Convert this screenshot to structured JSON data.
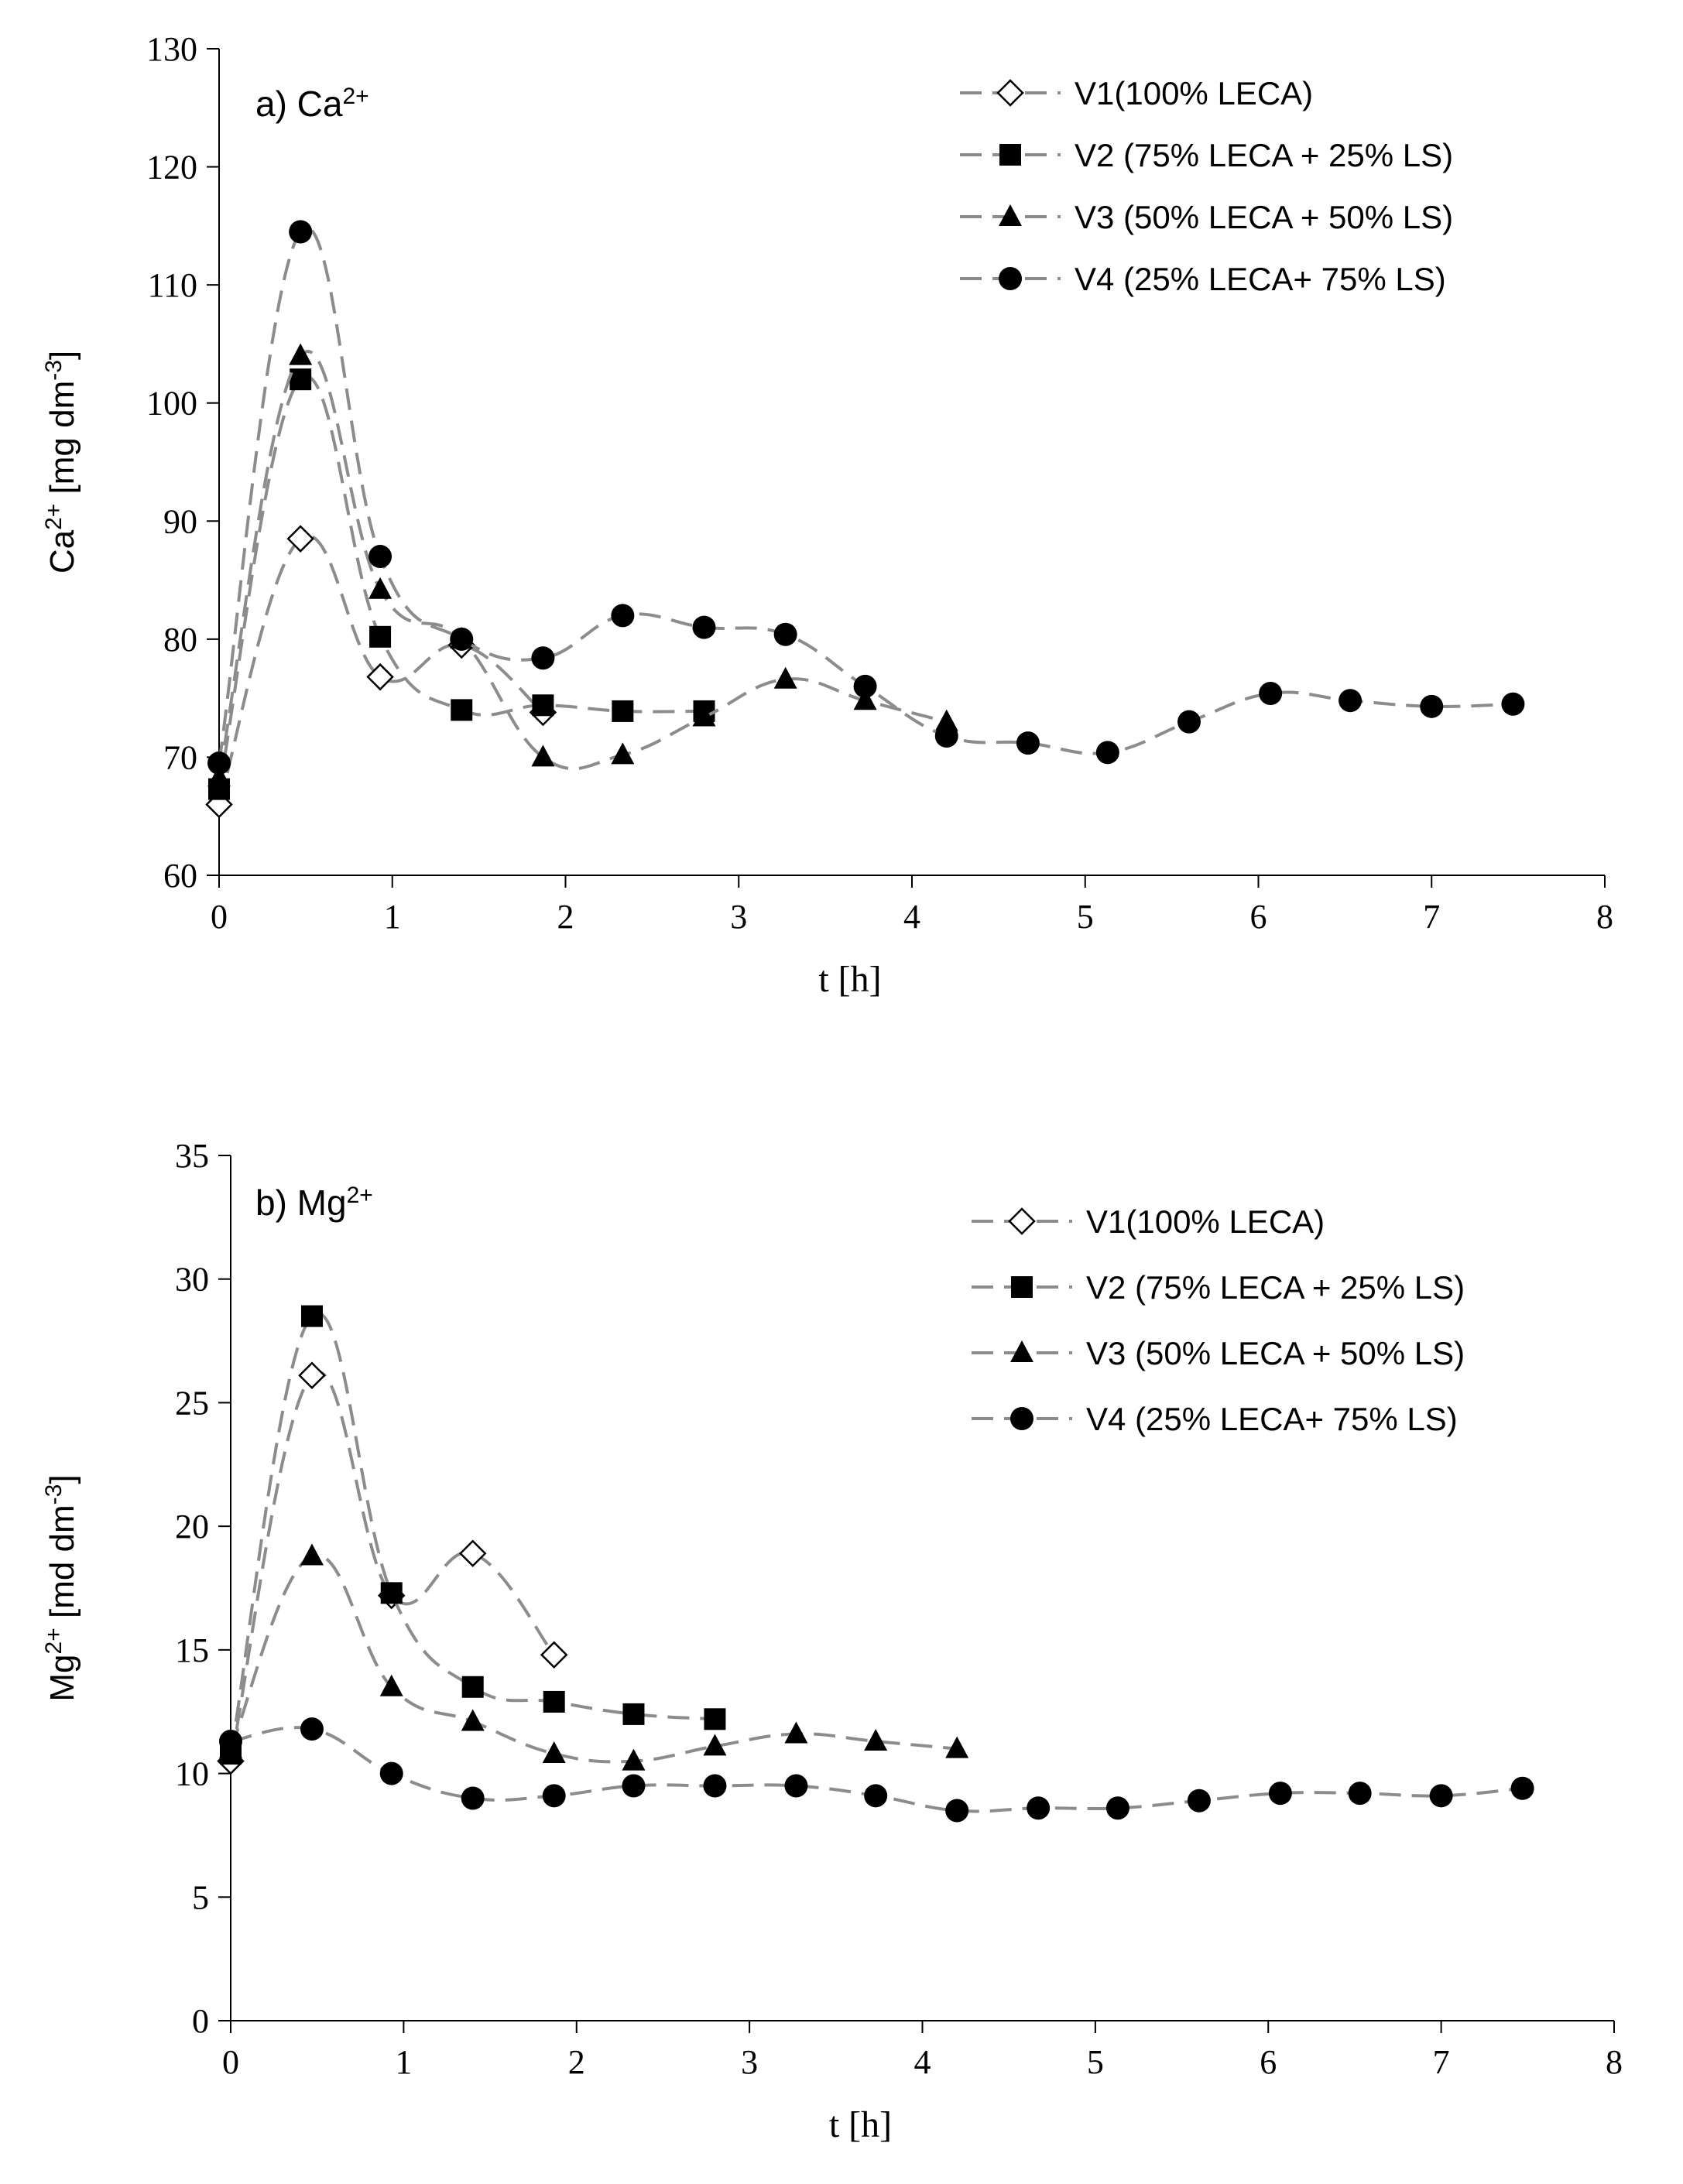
{
  "chart_data": [
    {
      "type": "line",
      "panel_label": "a) Ca",
      "panel_label_sup": "2+",
      "xlabel": "t [h]",
      "ylabel": {
        "main": "Ca",
        "sup": "2+",
        "rest": " [mg dm",
        "sup2": "-3",
        "end": "]"
      },
      "xlim": [
        0,
        8
      ],
      "ylim": [
        60,
        130
      ],
      "xticks": [
        "0",
        "1",
        "2",
        "3",
        "4",
        "5",
        "6",
        "7",
        "8"
      ],
      "yticks": [
        "60",
        "70",
        "80",
        "90",
        "100",
        "110",
        "120",
        "130"
      ],
      "line_style": "dashed, smoothed",
      "line_color": "#8c8c8c",
      "legend_position": "top-right",
      "series": [
        {
          "name": "V1(100% LECA)",
          "marker": "diamond-open",
          "x": [
            0,
            0.47,
            0.93,
            1.4,
            1.87
          ],
          "y": [
            66,
            88.5,
            76.8,
            79.5,
            73.8
          ]
        },
        {
          "name": "V2 (75% LECA + 25% LS)",
          "marker": "square",
          "x": [
            0,
            0.47,
            0.93,
            1.4,
            1.87,
            2.33,
            2.8
          ],
          "y": [
            67.3,
            102,
            80.2,
            74,
            74.4,
            73.9,
            73.9
          ]
        },
        {
          "name": "V3 (50% LECA + 50% LS)",
          "marker": "triangle",
          "x": [
            0,
            0.47,
            0.93,
            1.4,
            1.87,
            2.33,
            2.8,
            3.27,
            3.73,
            4.2
          ],
          "y": [
            68.3,
            104,
            84.2,
            80,
            70,
            70.2,
            73.4,
            76.6,
            74.8,
            73
          ]
        },
        {
          "name": "V4 (25% LECA+ 75% LS)",
          "marker": "circle",
          "x": [
            0,
            0.47,
            0.93,
            1.4,
            1.87,
            2.33,
            2.8,
            3.27,
            3.73,
            4.2,
            4.67,
            5.13,
            5.6,
            6.07,
            6.53,
            7,
            7.47
          ],
          "y": [
            69.5,
            114.5,
            87,
            80,
            78.4,
            82,
            81,
            80.4,
            76,
            71.8,
            71.2,
            70.4,
            73,
            75.4,
            74.8,
            74.3,
            74.5
          ]
        }
      ]
    },
    {
      "type": "line",
      "panel_label": "b) Mg",
      "panel_label_sup": "2+",
      "xlabel": "t [h]",
      "ylabel": {
        "main": "Mg",
        "sup": "2+",
        "rest": " [md dm",
        "sup2": "-3",
        "end": "]"
      },
      "xlim": [
        0,
        8
      ],
      "ylim": [
        0,
        35
      ],
      "xticks": [
        "0",
        "1",
        "2",
        "3",
        "4",
        "5",
        "6",
        "7",
        "8"
      ],
      "yticks": [
        "0",
        "5",
        "10",
        "15",
        "20",
        "25",
        "30",
        "35"
      ],
      "line_style": "dashed, smoothed",
      "line_color": "#8c8c8c",
      "legend_position": "top-right",
      "series": [
        {
          "name": "V1(100% LECA)",
          "marker": "diamond-open",
          "x": [
            0,
            0.47,
            0.93,
            1.4,
            1.87
          ],
          "y": [
            10.5,
            26.1,
            17.2,
            18.9,
            14.8
          ]
        },
        {
          "name": "V2 (75% LECA + 25% LS)",
          "marker": "square",
          "x": [
            0,
            0.47,
            0.93,
            1.4,
            1.87,
            2.33,
            2.8
          ],
          "y": [
            10.8,
            28.5,
            17.3,
            13.5,
            12.9,
            12.4,
            12.2
          ]
        },
        {
          "name": "V3 (50% LECA + 50% LS)",
          "marker": "triangle",
          "x": [
            0,
            0.47,
            0.93,
            1.4,
            1.87,
            2.33,
            2.8,
            3.27,
            3.73,
            4.2
          ],
          "y": [
            11,
            18.8,
            13.5,
            12.1,
            10.8,
            10.5,
            11.1,
            11.6,
            11.3,
            11
          ]
        },
        {
          "name": "V4 (25% LECA+ 75% LS)",
          "marker": "circle",
          "x": [
            0,
            0.47,
            0.93,
            1.4,
            1.87,
            2.33,
            2.8,
            3.27,
            3.73,
            4.2,
            4.67,
            5.13,
            5.6,
            6.07,
            6.53,
            7,
            7.47
          ],
          "y": [
            11.3,
            11.8,
            10,
            9,
            9.1,
            9.5,
            9.5,
            9.5,
            9.1,
            8.5,
            8.6,
            8.6,
            8.9,
            9.2,
            9.2,
            9.1,
            9.4
          ]
        }
      ]
    }
  ]
}
